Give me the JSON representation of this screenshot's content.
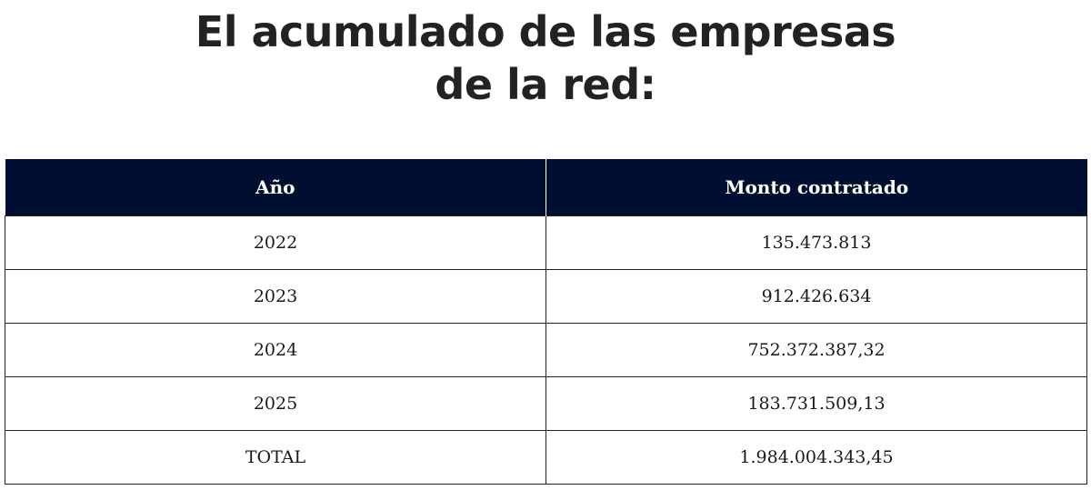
{
  "title": {
    "line1": "El acumulado de las empresas",
    "line2": "de la red:"
  },
  "table": {
    "headers": [
      "Año",
      "Monto contratado"
    ],
    "rows": [
      [
        "2022",
        "135.473.813"
      ],
      [
        "2023",
        "912.426.634"
      ],
      [
        "2024",
        "752.372.387,32"
      ],
      [
        "2025",
        "183.731.509,13"
      ],
      [
        "TOTAL",
        "1.984.004.343,45"
      ]
    ]
  },
  "colors": {
    "header_bg": "#000f31",
    "header_text": "#ffffff",
    "title_text": "#222222"
  }
}
